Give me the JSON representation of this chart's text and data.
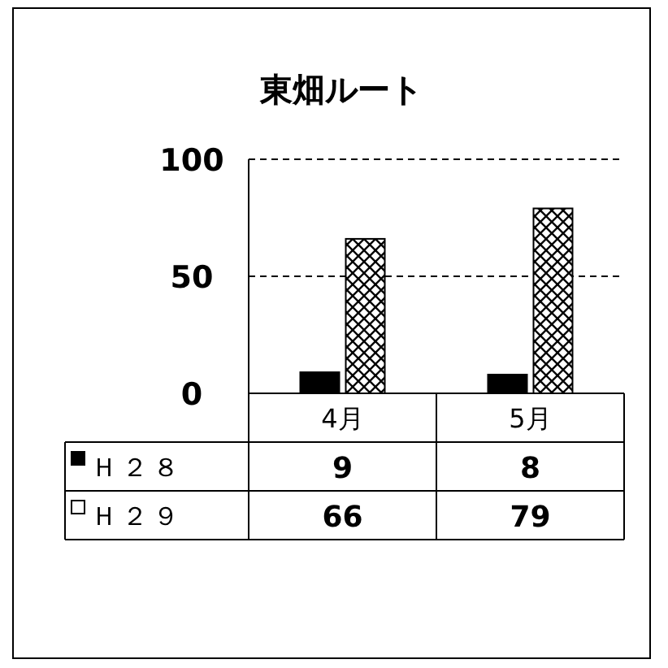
{
  "chart_data": {
    "type": "bar",
    "title": "東畑ルート",
    "categories": [
      "4月",
      "5月"
    ],
    "series": [
      {
        "name": "Ｈ２８",
        "color": "#000000",
        "values": [
          9,
          8
        ]
      },
      {
        "name": "Ｈ２９",
        "color": "#ffffff",
        "values": [
          66,
          79
        ]
      }
    ],
    "ylim": [
      0,
      100
    ],
    "yticks": [
      0,
      50,
      100
    ],
    "grid": "y",
    "legend": "bottom",
    "data_labels": true
  }
}
